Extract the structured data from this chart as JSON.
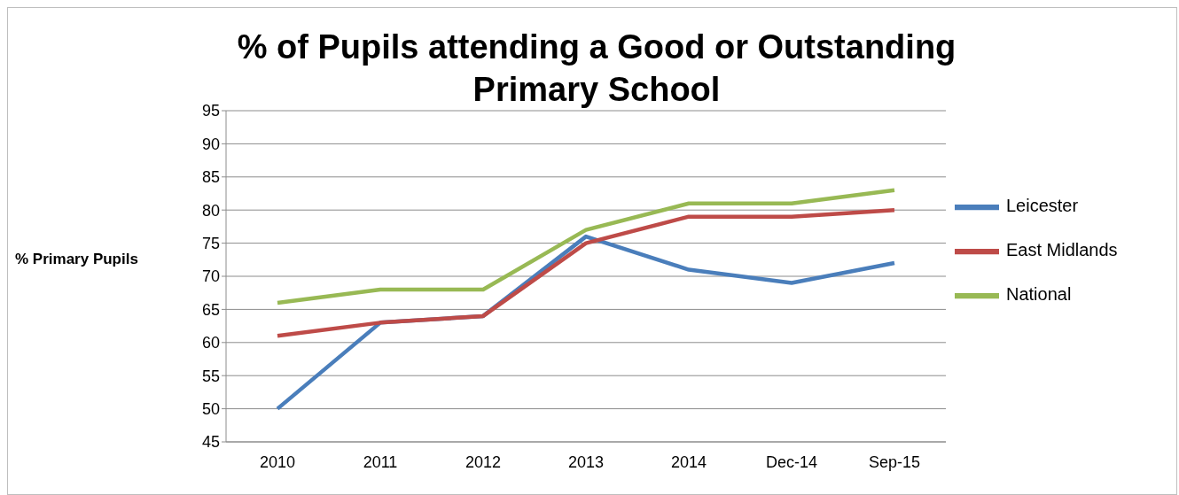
{
  "chart_data": {
    "type": "line",
    "title": "% of Pupils attending a Good or Outstanding Primary School",
    "ylabel": "% Primary Pupils",
    "categories": [
      "2010",
      "2011",
      "2012",
      "2013",
      "2014",
      "Dec-14",
      "Sep-15"
    ],
    "series": [
      {
        "name": "Leicester",
        "color": "#4a7ebb",
        "values": [
          50,
          63,
          64,
          76,
          71,
          69,
          72
        ]
      },
      {
        "name": "East Midlands",
        "color": "#be4b48",
        "values": [
          61,
          63,
          64,
          75,
          79,
          79,
          80
        ]
      },
      {
        "name": "National",
        "color": "#98b954",
        "values": [
          66,
          68,
          68,
          77,
          81,
          81,
          83
        ]
      }
    ],
    "ylim": [
      45,
      95
    ],
    "yticks": [
      45,
      50,
      55,
      60,
      65,
      70,
      75,
      80,
      85,
      90,
      95
    ],
    "grid": "y",
    "legend": "right",
    "marker": "none",
    "line_style": "solid"
  }
}
